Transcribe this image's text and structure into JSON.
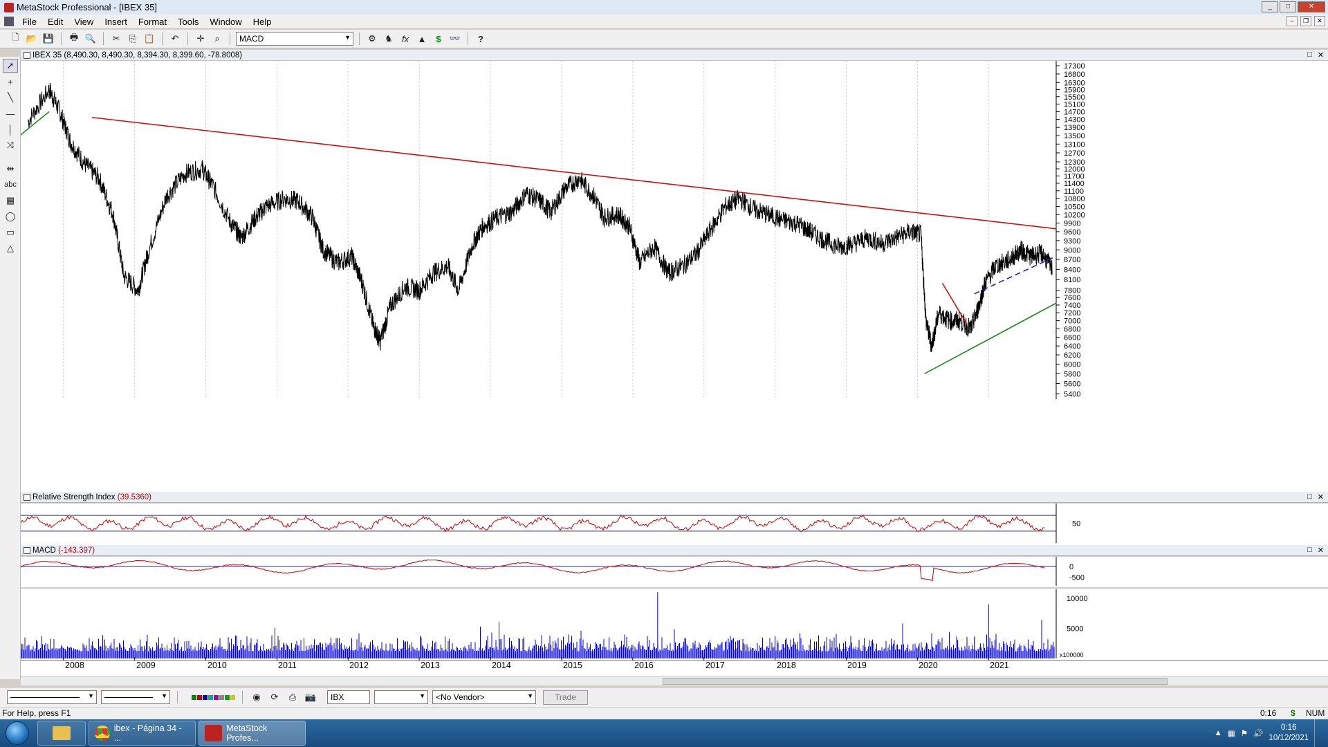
{
  "window": {
    "title": "MetaStock Professional - [IBEX 35]",
    "btn_min": "_",
    "btn_max": "□",
    "btn_close": "✕"
  },
  "menu": [
    "File",
    "Edit",
    "View",
    "Insert",
    "Format",
    "Tools",
    "Window",
    "Help"
  ],
  "toolbar": {
    "indicator_combo": "MACD"
  },
  "panes": {
    "price": {
      "title": "IBEX 35",
      "values": "(8,490.30, 8,490.30, 8,394.30, 8,399.60, -78.8008)"
    },
    "rsi": {
      "title": "Relative Strength Index",
      "value": "(39.5360)"
    },
    "macd": {
      "title": "MACD",
      "value": "(-143.397)"
    }
  },
  "bottom": {
    "symbol": "IBX",
    "vendor": "<No Vendor>",
    "trade": "Trade"
  },
  "status": {
    "help": "For Help, press F1",
    "time": "0:16",
    "num": "NUM"
  },
  "taskbar": {
    "items": [
      "ibex - Página 34 - ...",
      "MetaStock Profes..."
    ],
    "clock_time": "0:16",
    "clock_date": "10/12/2021"
  },
  "chart_data": [
    {
      "type": "line",
      "title": "IBEX 35",
      "xlabel": "",
      "ylabel": "",
      "x_ticks": [
        "2008",
        "2009",
        "2010",
        "2011",
        "2012",
        "2013",
        "2014",
        "2015",
        "2016",
        "2017",
        "2018",
        "2019",
        "2020",
        "2021"
      ],
      "y_ticks": [
        17300,
        16800,
        16300,
        15900,
        15500,
        15100,
        14700,
        14300,
        13900,
        13500,
        13100,
        12700,
        12300,
        12000,
        11700,
        11400,
        11100,
        10800,
        10500,
        10200,
        9900,
        9600,
        9300,
        9000,
        8700,
        8400,
        8100,
        7800,
        7600,
        7400,
        7200,
        7000,
        6800,
        6600,
        6400,
        6200,
        6000,
        5800,
        5600,
        5400
      ],
      "y_scale": "log",
      "ylim": [
        5300,
        17600
      ],
      "grid": "vertical at year boundaries",
      "series": [
        {
          "color": "#000000",
          "x": [
            2007.5,
            2007.8,
            2007.95,
            2008.1,
            2008.3,
            2008.5,
            2008.7,
            2008.85,
            2009.05,
            2009.2,
            2009.45,
            2009.7,
            2009.95,
            2010.1,
            2010.35,
            2010.5,
            2010.7,
            2010.85,
            2011.1,
            2011.3,
            2011.5,
            2011.65,
            2011.85,
            2012.05,
            2012.2,
            2012.35,
            2012.45,
            2012.6,
            2012.8,
            2013.0,
            2013.2,
            2013.4,
            2013.55,
            2013.75,
            2013.9,
            2014.1,
            2014.3,
            2014.5,
            2014.7,
            2014.85,
            2015.05,
            2015.25,
            2015.45,
            2015.6,
            2015.8,
            2015.95,
            2016.1,
            2016.3,
            2016.5,
            2016.7,
            2016.9,
            2017.1,
            2017.3,
            2017.5,
            2017.7,
            2017.9,
            2018.1,
            2018.3,
            2018.5,
            2018.7,
            2018.9,
            2019.1,
            2019.3,
            2019.5,
            2019.7,
            2019.9,
            2020.05,
            2020.12,
            2020.2,
            2020.3,
            2020.45,
            2020.6,
            2020.75,
            2020.85,
            2020.95,
            2021.1,
            2021.3,
            2021.45,
            2021.6,
            2021.75,
            2021.9
          ],
          "values": [
            14200,
            15900,
            14700,
            13200,
            12200,
            11600,
            10200,
            8200,
            7800,
            9000,
            10900,
            11800,
            12000,
            11300,
            9900,
            9400,
            10100,
            10500,
            10800,
            10700,
            10100,
            9000,
            8600,
            8800,
            8000,
            6900,
            6500,
            7400,
            7900,
            7800,
            8300,
            8500,
            7800,
            9200,
            9800,
            10100,
            10300,
            11000,
            10700,
            10300,
            11200,
            11600,
            10900,
            10100,
            10200,
            9800,
            8600,
            9100,
            8300,
            8500,
            8900,
            9700,
            10500,
            10800,
            10400,
            10200,
            10000,
            9900,
            9600,
            9300,
            9100,
            9200,
            9400,
            9200,
            9400,
            9600,
            9500,
            7000,
            6400,
            7200,
            7000,
            7000,
            6800,
            7300,
            8000,
            8500,
            8700,
            9000,
            8800,
            8900,
            8400
          ]
        }
      ],
      "trendlines": [
        {
          "color": "#d01010",
          "from": [
            2008.4,
            14400
          ],
          "to": [
            2021.95,
            9700
          ]
        },
        {
          "color": "#1a8a1a",
          "from": [
            2020.1,
            5800
          ],
          "to": [
            2021.95,
            7450
          ]
        },
        {
          "color": "#2020c0",
          "style": "dashed",
          "from": [
            2020.8,
            7700
          ],
          "to": [
            2021.9,
            8750
          ]
        },
        {
          "color": "#d01010",
          "from": [
            2020.35,
            8000
          ],
          "to": [
            2020.7,
            6900
          ]
        },
        {
          "color": "#1a8a1a",
          "from": [
            2007.35,
            13400
          ],
          "to": [
            2007.8,
            14700
          ]
        }
      ]
    },
    {
      "type": "line",
      "title": "Relative Strength Index",
      "y_ticks": [
        50
      ],
      "ylim": [
        0,
        100
      ],
      "reference_lines": [
        70,
        30
      ],
      "series": [
        {
          "color": "#cc0000",
          "x": [
            2007.5,
            2021.95
          ],
          "values": [
            55,
            39.5
          ]
        }
      ]
    },
    {
      "type": "line",
      "title": "MACD",
      "y_ticks": [
        0,
        -500
      ],
      "ylim": [
        -900,
        450
      ],
      "series": [
        {
          "color": "#cc0000",
          "x": [
            2007.5,
            2021.95
          ],
          "values": [
            150,
            -143.397
          ]
        }
      ]
    },
    {
      "type": "bar",
      "title": "",
      "y_ticks": [
        10000,
        5000
      ],
      "y_unit_label": "x100000",
      "ylim": [
        0,
        11500
      ],
      "series": [
        {
          "color": "#0000ee",
          "x": [
            2016.35,
            2021.0
          ],
          "values": [
            11000,
            9000
          ]
        }
      ]
    }
  ]
}
